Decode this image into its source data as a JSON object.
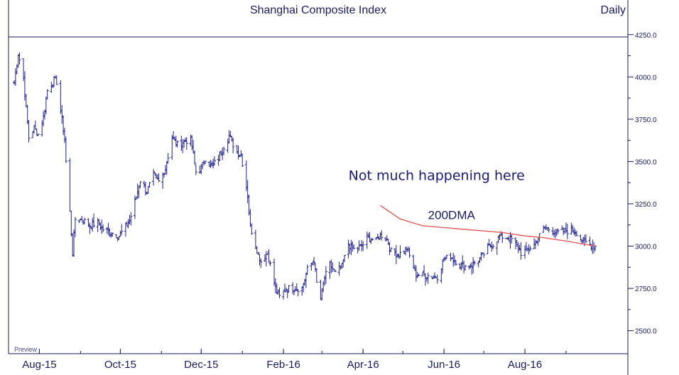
{
  "chart_data": {
    "type": "ohlc",
    "title": "Shanghai Composite Index",
    "period_label": "Daily",
    "footer_label": "Preview",
    "ylim": [
      2500,
      4300
    ],
    "y_ticks": [
      "4250.0",
      "4000.0",
      "3750.0",
      "3500.0",
      "3250.0",
      "3000.0",
      "2750.0",
      "2500.0"
    ],
    "x_ticks": [
      "Aug-15",
      "Oct-15",
      "Dec-15",
      "Feb-16",
      "Apr-16",
      "Jun-16",
      "Aug-16"
    ],
    "x_start": "2015-07-13",
    "x_end": "2016-09-23",
    "grid": false,
    "colors": {
      "bars": "#1e1e8c",
      "ma": "#e05050",
      "axis": "#1a1a5e",
      "text": "#1a1a5e"
    },
    "series": [
      {
        "name": "Shanghai Composite Index",
        "style": "ohlc-bars",
        "anchors": [
          [
            "2015-07-13",
            3970
          ],
          [
            "2015-07-16",
            4140
          ],
          [
            "2015-07-20",
            3990
          ],
          [
            "2015-07-24",
            3640
          ],
          [
            "2015-07-28",
            3700
          ],
          [
            "2015-07-31",
            3660
          ],
          [
            "2015-08-04",
            3760
          ],
          [
            "2015-08-07",
            3920
          ],
          [
            "2015-08-12",
            3980
          ],
          [
            "2015-08-14",
            3970
          ],
          [
            "2015-08-18",
            3750
          ],
          [
            "2015-08-20",
            3630
          ],
          [
            "2015-08-21",
            3500
          ],
          [
            "2015-08-24",
            3200
          ],
          [
            "2015-08-26",
            2960
          ],
          [
            "2015-08-28",
            3160
          ],
          [
            "2015-09-02",
            3160
          ],
          [
            "2015-09-08",
            3120
          ],
          [
            "2015-09-14",
            3140
          ],
          [
            "2015-09-18",
            3100
          ],
          [
            "2015-09-24",
            3080
          ],
          [
            "2015-09-30",
            3060
          ],
          [
            "2015-10-08",
            3150
          ],
          [
            "2015-10-13",
            3290
          ],
          [
            "2015-10-16",
            3390
          ],
          [
            "2015-10-21",
            3320
          ],
          [
            "2015-10-26",
            3420
          ],
          [
            "2015-10-30",
            3380
          ],
          [
            "2015-11-04",
            3460
          ],
          [
            "2015-11-09",
            3640
          ],
          [
            "2015-11-13",
            3600
          ],
          [
            "2015-11-18",
            3620
          ],
          [
            "2015-11-23",
            3630
          ],
          [
            "2015-11-27",
            3440
          ],
          [
            "2015-12-01",
            3460
          ],
          [
            "2015-12-04",
            3520
          ],
          [
            "2015-12-09",
            3470
          ],
          [
            "2015-12-14",
            3520
          ],
          [
            "2015-12-18",
            3590
          ],
          [
            "2015-12-22",
            3650
          ],
          [
            "2015-12-28",
            3550
          ],
          [
            "2015-12-31",
            3540
          ],
          [
            "2016-01-05",
            3300
          ],
          [
            "2016-01-07",
            3120
          ],
          [
            "2016-01-11",
            3000
          ],
          [
            "2016-01-15",
            2910
          ],
          [
            "2016-01-20",
            2960
          ],
          [
            "2016-01-26",
            2750
          ],
          [
            "2016-01-29",
            2700
          ],
          [
            "2016-02-03",
            2750
          ],
          [
            "2016-02-15",
            2750
          ],
          [
            "2016-02-19",
            2860
          ],
          [
            "2016-02-24",
            2920
          ],
          [
            "2016-02-26",
            2780
          ],
          [
            "2016-02-29",
            2690
          ],
          [
            "2016-03-03",
            2810
          ],
          [
            "2016-03-07",
            2890
          ],
          [
            "2016-03-11",
            2840
          ],
          [
            "2016-03-16",
            2880
          ],
          [
            "2016-03-21",
            3010
          ],
          [
            "2016-03-25",
            2980
          ],
          [
            "2016-03-31",
            3000
          ],
          [
            "2016-04-05",
            3050
          ],
          [
            "2016-04-11",
            3030
          ],
          [
            "2016-04-14",
            3070
          ],
          [
            "2016-04-19",
            3040
          ],
          [
            "2016-04-22",
            2970
          ],
          [
            "2016-04-28",
            2950
          ],
          [
            "2016-05-04",
            2990
          ],
          [
            "2016-05-06",
            2940
          ],
          [
            "2016-05-11",
            2830
          ],
          [
            "2016-05-17",
            2830
          ],
          [
            "2016-05-23",
            2820
          ],
          [
            "2016-05-27",
            2820
          ],
          [
            "2016-06-01",
            2920
          ],
          [
            "2016-06-06",
            2940
          ],
          [
            "2016-06-13",
            2890
          ],
          [
            "2016-06-17",
            2880
          ],
          [
            "2016-06-22",
            2890
          ],
          [
            "2016-06-27",
            2920
          ],
          [
            "2016-06-30",
            2940
          ],
          [
            "2016-07-04",
            2990
          ],
          [
            "2016-07-08",
            3010
          ],
          [
            "2016-07-13",
            3060
          ],
          [
            "2016-07-18",
            3050
          ],
          [
            "2016-07-22",
            3040
          ],
          [
            "2016-07-27",
            2990
          ],
          [
            "2016-07-29",
            2960
          ],
          [
            "2016-08-03",
            2980
          ],
          [
            "2016-08-08",
            3010
          ],
          [
            "2016-08-12",
            3060
          ],
          [
            "2016-08-16",
            3110
          ],
          [
            "2016-08-22",
            3090
          ],
          [
            "2016-08-26",
            3080
          ],
          [
            "2016-08-31",
            3090
          ],
          [
            "2016-09-06",
            3090
          ],
          [
            "2016-09-09",
            3080
          ],
          [
            "2016-09-13",
            3030
          ],
          [
            "2016-09-19",
            3010
          ],
          [
            "2016-09-23",
            3000
          ]
        ]
      },
      {
        "name": "200DMA",
        "style": "line",
        "points": [
          [
            "2016-04-14",
            3240
          ],
          [
            "2016-04-29",
            3160
          ],
          [
            "2016-05-16",
            3120
          ],
          [
            "2016-06-15",
            3100
          ],
          [
            "2016-07-15",
            3080
          ],
          [
            "2016-08-01",
            3060
          ],
          [
            "2016-08-15",
            3050
          ],
          [
            "2016-09-01",
            3030
          ],
          [
            "2016-09-23",
            3000
          ]
        ]
      }
    ],
    "annotations": [
      {
        "text": "Not much happening here",
        "at": [
          "2016-03-21",
          3390
        ]
      },
      {
        "text": "200DMA",
        "at": [
          "2016-05-20",
          3160
        ]
      }
    ]
  }
}
